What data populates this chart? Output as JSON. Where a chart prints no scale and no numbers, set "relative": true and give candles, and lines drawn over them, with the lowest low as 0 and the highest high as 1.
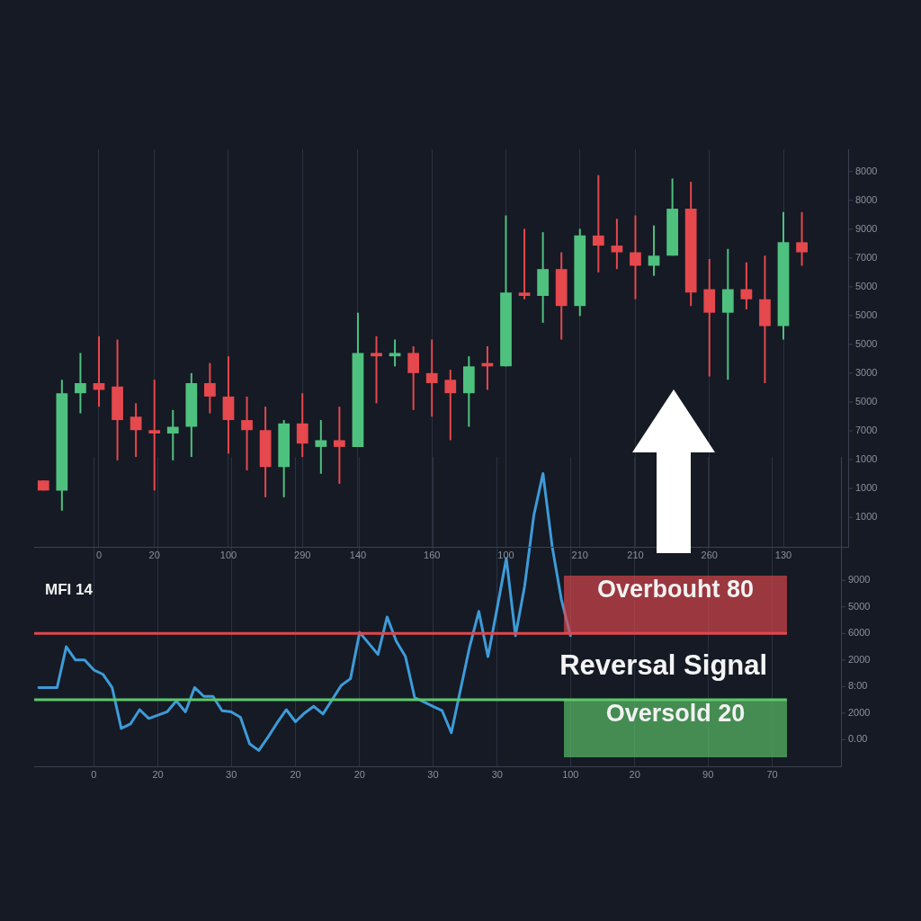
{
  "chart_data": [
    {
      "type": "candlestick",
      "relative": true,
      "grid": "x",
      "categories": [
        null,
        null,
        null,
        "0",
        null,
        null,
        "20",
        null,
        null,
        null,
        "100",
        null,
        null,
        null,
        "290",
        null,
        null,
        "140",
        null,
        null,
        null,
        "160",
        null,
        null,
        null,
        "100",
        null,
        null,
        null,
        "210",
        null,
        null,
        "210",
        null,
        null,
        null,
        "260",
        null,
        null,
        null,
        "130",
        null,
        null,
        null
      ],
      "ohlc": [
        [
          0.09,
          0.09,
          0.06,
          0.06
        ],
        [
          0.06,
          0.39,
          0,
          0.35
        ],
        [
          0.35,
          0.47,
          0.29,
          0.38
        ],
        [
          0.38,
          0.52,
          0.31,
          0.36
        ],
        [
          0.37,
          0.51,
          0.15,
          0.27
        ],
        [
          0.28,
          0.32,
          0.16,
          0.24
        ],
        [
          0.24,
          0.39,
          0.06,
          0.23
        ],
        [
          0.23,
          0.3,
          0.15,
          0.25
        ],
        [
          0.25,
          0.41,
          0.16,
          0.38
        ],
        [
          0.38,
          0.44,
          0.29,
          0.34
        ],
        [
          0.34,
          0.46,
          0.17,
          0.27
        ],
        [
          0.27,
          0.34,
          0.12,
          0.24
        ],
        [
          0.24,
          0.31,
          0.04,
          0.13
        ],
        [
          0.13,
          0.27,
          0.04,
          0.26
        ],
        [
          0.26,
          0.35,
          0.16,
          0.2
        ],
        [
          0.19,
          0.27,
          0.11,
          0.21
        ],
        [
          0.21,
          0.31,
          0.08,
          0.19
        ],
        [
          0.19,
          0.59,
          0.19,
          0.47
        ],
        [
          0.47,
          0.52,
          0.32,
          0.46
        ],
        [
          0.46,
          0.51,
          0.43,
          0.47
        ],
        [
          0.47,
          0.49,
          0.3,
          0.41
        ],
        [
          0.41,
          0.51,
          0.28,
          0.38
        ],
        [
          0.39,
          0.42,
          0.21,
          0.35
        ],
        [
          0.35,
          0.46,
          0.25,
          0.43
        ],
        [
          0.44,
          0.49,
          0.36,
          0.43
        ],
        [
          0.43,
          0.88,
          0.43,
          0.65
        ],
        [
          0.65,
          0.84,
          0.63,
          0.64
        ],
        [
          0.64,
          0.83,
          0.56,
          0.72
        ],
        [
          0.72,
          0.77,
          0.51,
          0.61
        ],
        [
          0.61,
          0.84,
          0.58,
          0.82
        ],
        [
          0.82,
          1,
          0.71,
          0.79
        ],
        [
          0.79,
          0.87,
          0.72,
          0.77
        ],
        [
          0.77,
          0.88,
          0.63,
          0.73
        ],
        [
          0.73,
          0.85,
          0.7,
          0.76
        ],
        [
          0.76,
          0.99,
          0.76,
          0.9
        ],
        [
          0.9,
          0.98,
          0.61,
          0.65
        ],
        [
          0.66,
          0.75,
          0.4,
          0.59
        ],
        [
          0.59,
          0.78,
          0.39,
          0.66
        ],
        [
          0.66,
          0.74,
          0.6,
          0.63
        ],
        [
          0.63,
          0.76,
          0.38,
          0.55
        ],
        [
          0.55,
          0.89,
          0.51,
          0.8
        ],
        [
          0.8,
          0.89,
          0.73,
          0.77
        ],
        null,
        null
      ],
      "colors": [
        "#e5484d",
        "#4fc17f",
        "#4fc17f",
        "#e5484d",
        "#e5484d",
        "#e5484d",
        "#e5484d",
        "#4fc17f",
        "#4fc17f",
        "#e5484d",
        "#e5484d",
        "#e5484d",
        "#e5484d",
        "#4fc17f",
        "#e5484d",
        "#4fc17f",
        "#e5484d",
        "#4fc17f",
        "#e5484d",
        "#4fc17f",
        "#e5484d",
        "#e5484d",
        "#e5484d",
        "#4fc17f",
        "#e5484d",
        "#4fc17f",
        "#e5484d",
        "#4fc17f",
        "#e5484d",
        "#4fc17f",
        "#e5484d",
        "#e5484d",
        "#e5484d",
        "#4fc17f",
        "#4fc17f",
        "#e5484d",
        "#e5484d",
        "#4fc17f",
        "#e5484d",
        "#e5484d",
        "#4fc17f",
        "#e5484d",
        null,
        null
      ],
      "annotations": [
        "8000",
        "8000",
        "9000",
        "7000",
        "5000",
        "5000",
        "5000",
        "3000",
        "5000",
        "7000",
        "1000",
        "1000",
        "1000"
      ]
    },
    {
      "type": "line",
      "title": "MFI 14",
      "grid": "x",
      "tick_labels": "x",
      "marker": "none",
      "line_style": "solid",
      "categories": [
        null,
        null,
        null,
        null,
        null,
        null,
        "0",
        null,
        null,
        null,
        null,
        null,
        null,
        "20",
        null,
        null,
        null,
        null,
        null,
        null,
        null,
        "30",
        null,
        null,
        null,
        null,
        null,
        null,
        "20",
        null,
        null,
        null,
        null,
        null,
        null,
        "20",
        null,
        null,
        null,
        null,
        null,
        null,
        null,
        "30",
        null,
        null,
        null,
        null,
        null,
        null,
        "30",
        null,
        null,
        null,
        null,
        null,
        null,
        null,
        "100",
        null,
        null,
        null,
        null,
        null,
        null,
        "20",
        null,
        null,
        null,
        null,
        null,
        null,
        null,
        "90",
        null,
        null,
        null,
        null,
        null,
        null,
        "70",
        null,
        null,
        null,
        null,
        null,
        null,
        null
      ],
      "series": [
        {
          "color": "#3e9bd8",
          "values": [
            31,
            31,
            31,
            68,
            56,
            56,
            47,
            43,
            31,
            -6,
            -2,
            11,
            3,
            6,
            9,
            19,
            9,
            31,
            23,
            23,
            10,
            9,
            4,
            -20,
            -26,
            -14,
            -1,
            11,
            0,
            8,
            14,
            7,
            20,
            33,
            39,
            81,
            71,
            61,
            95,
            73,
            59,
            22,
            18,
            14,
            10,
            -10,
            29,
            68,
            100,
            59,
            103,
            148,
            78,
            123,
            187,
            225,
            159,
            111,
            78,
            null,
            null,
            null,
            null,
            null,
            null,
            null,
            null,
            null,
            null,
            null,
            null,
            null,
            null,
            null,
            null,
            null,
            null,
            null,
            null,
            null,
            null,
            null,
            null,
            null,
            null,
            null,
            null,
            null
          ]
        }
      ],
      "ylim": [
        -41,
        240
      ],
      "ref_lines": [
        {
          "axis": "y",
          "value": 80,
          "label": "Overbouht 80",
          "color": "#e0474c"
        },
        {
          "axis": "y",
          "value": 20,
          "label": "Oversold 20",
          "color": "#5cc868"
        }
      ],
      "annotations": [
        "Reversal Signal",
        "9000",
        "5000",
        "6000",
        "2000",
        "8:00",
        "2000",
        "0.00"
      ]
    }
  ]
}
